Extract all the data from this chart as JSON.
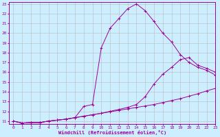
{
  "xlabel": "Windchill (Refroidissement éolien,°C)",
  "bg_color": "#cceeff",
  "line_color": "#990099",
  "grid_color": "#bbbbbb",
  "xlim": [
    -0.5,
    23
  ],
  "ylim": [
    10.7,
    23.2
  ],
  "xticks": [
    0,
    1,
    2,
    3,
    4,
    5,
    6,
    7,
    8,
    9,
    10,
    11,
    12,
    13,
    14,
    15,
    16,
    17,
    18,
    19,
    20,
    21,
    22,
    23
  ],
  "yticks": [
    11,
    12,
    13,
    14,
    15,
    16,
    17,
    18,
    19,
    20,
    21,
    22,
    23
  ],
  "line1_x": [
    0,
    1,
    2,
    3,
    4,
    5,
    6,
    7,
    8,
    9,
    10,
    11,
    12,
    13,
    14,
    15,
    16,
    17,
    18,
    19,
    20,
    21,
    22,
    23
  ],
  "line1_y": [
    11.0,
    10.8,
    10.85,
    10.85,
    11.0,
    11.1,
    11.2,
    11.35,
    11.5,
    11.65,
    11.8,
    11.95,
    12.1,
    12.25,
    12.4,
    12.55,
    12.7,
    12.9,
    13.1,
    13.3,
    13.55,
    13.8,
    14.1,
    14.35
  ],
  "line2_x": [
    0,
    1,
    2,
    3,
    4,
    5,
    6,
    7,
    8,
    9,
    10,
    11,
    12,
    13,
    14,
    15,
    16,
    17,
    18,
    19,
    20,
    21,
    22,
    23
  ],
  "line2_y": [
    11.0,
    10.8,
    10.85,
    10.85,
    11.0,
    11.1,
    11.2,
    11.35,
    12.5,
    12.7,
    18.5,
    20.5,
    21.5,
    22.5,
    23.0,
    22.3,
    21.2,
    20.0,
    19.1,
    17.8,
    17.0,
    16.5,
    16.2,
    15.7
  ],
  "line3_x": [
    0,
    1,
    2,
    3,
    4,
    5,
    6,
    7,
    8,
    9,
    10,
    11,
    12,
    13,
    14,
    15,
    16,
    17,
    18,
    19,
    20,
    21,
    22,
    23
  ],
  "line3_y": [
    11.0,
    10.8,
    10.85,
    10.85,
    11.0,
    11.1,
    11.2,
    11.35,
    11.5,
    11.65,
    11.8,
    12.0,
    12.2,
    12.4,
    12.7,
    13.5,
    14.8,
    15.8,
    16.5,
    17.3,
    17.5,
    16.7,
    16.4,
    16.0
  ]
}
